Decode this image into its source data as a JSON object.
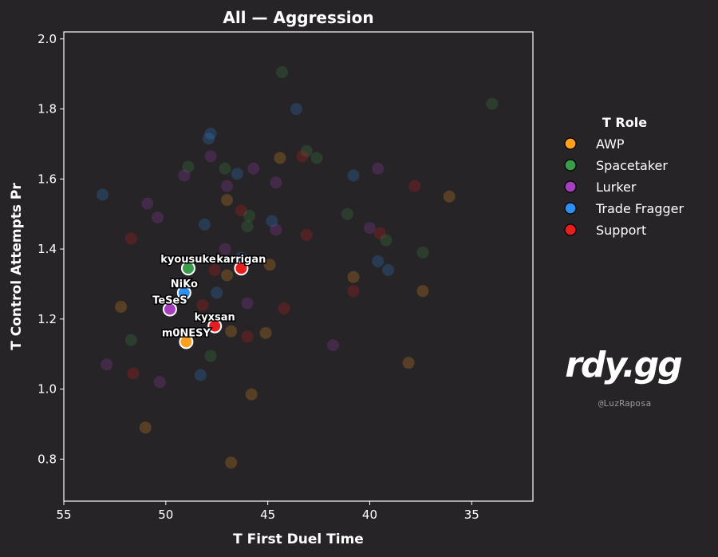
{
  "chart_data": {
    "type": "scatter",
    "title": "All — Aggression",
    "xlabel": "T First Duel Time",
    "ylabel": "T Control Attempts Pr",
    "xlim": [
      55,
      32
    ],
    "ylim": [
      0.68,
      2.02
    ],
    "x_reversed": true,
    "xticks": [
      55,
      50,
      45,
      40,
      35
    ],
    "yticks": [
      0.8,
      1.0,
      1.2,
      1.4,
      1.6,
      1.8,
      2.0
    ],
    "xtick_labels": [
      "55",
      "50",
      "45",
      "40",
      "35"
    ],
    "ytick_labels": [
      "0.8",
      "1.0",
      "1.2",
      "1.4",
      "1.6",
      "1.8",
      "2.0"
    ],
    "grid": false,
    "legend": {
      "title": "T Role",
      "placement": "right",
      "entries": [
        {
          "label": "AWP",
          "color": "#ff9f1c"
        },
        {
          "label": "Spacetaker",
          "color": "#3a9d4a"
        },
        {
          "label": "Lurker",
          "color": "#a63fbf"
        },
        {
          "label": "Trade Fragger",
          "color": "#2d8ff0"
        },
        {
          "label": "Support",
          "color": "#e81d1d"
        }
      ]
    },
    "highlighted": [
      {
        "name": "kyousuke",
        "x": 48.9,
        "y": 1.345,
        "role": "Spacetaker"
      },
      {
        "name": "karrigan",
        "x": 46.3,
        "y": 1.345,
        "role": "Support"
      },
      {
        "name": "NiKo",
        "x": 49.1,
        "y": 1.275,
        "role": "Trade Fragger"
      },
      {
        "name": "TeSeS",
        "x": 49.8,
        "y": 1.228,
        "role": "Lurker"
      },
      {
        "name": "kyxsan",
        "x": 47.6,
        "y": 1.18,
        "role": "Support"
      },
      {
        "name": "m0NESY",
        "x": 49.0,
        "y": 1.135,
        "role": "AWP"
      }
    ],
    "background_points": [
      {
        "x": 44.3,
        "y": 1.905,
        "role": "Spacetaker"
      },
      {
        "x": 34.0,
        "y": 1.815,
        "role": "Spacetaker"
      },
      {
        "x": 43.6,
        "y": 1.8,
        "role": "Trade Fragger"
      },
      {
        "x": 47.8,
        "y": 1.73,
        "role": "Trade Fragger"
      },
      {
        "x": 47.9,
        "y": 1.715,
        "role": "Trade Fragger"
      },
      {
        "x": 47.8,
        "y": 1.665,
        "role": "Lurker"
      },
      {
        "x": 44.4,
        "y": 1.66,
        "role": "AWP"
      },
      {
        "x": 43.1,
        "y": 1.68,
        "role": "Spacetaker"
      },
      {
        "x": 43.3,
        "y": 1.665,
        "role": "Support"
      },
      {
        "x": 42.6,
        "y": 1.66,
        "role": "Spacetaker"
      },
      {
        "x": 48.9,
        "y": 1.635,
        "role": "Spacetaker"
      },
      {
        "x": 49.1,
        "y": 1.61,
        "role": "Lurker"
      },
      {
        "x": 47.1,
        "y": 1.63,
        "role": "Spacetaker"
      },
      {
        "x": 46.5,
        "y": 1.615,
        "role": "Trade Fragger"
      },
      {
        "x": 45.7,
        "y": 1.63,
        "role": "Lurker"
      },
      {
        "x": 40.8,
        "y": 1.61,
        "role": "Trade Fragger"
      },
      {
        "x": 39.6,
        "y": 1.63,
        "role": "Lurker"
      },
      {
        "x": 47.0,
        "y": 1.58,
        "role": "Lurker"
      },
      {
        "x": 44.6,
        "y": 1.59,
        "role": "Lurker"
      },
      {
        "x": 37.8,
        "y": 1.58,
        "role": "Support"
      },
      {
        "x": 36.1,
        "y": 1.55,
        "role": "AWP"
      },
      {
        "x": 53.1,
        "y": 1.555,
        "role": "Trade Fragger"
      },
      {
        "x": 50.9,
        "y": 1.53,
        "role": "Lurker"
      },
      {
        "x": 47.0,
        "y": 1.54,
        "role": "AWP"
      },
      {
        "x": 46.3,
        "y": 1.51,
        "role": "Support"
      },
      {
        "x": 45.9,
        "y": 1.495,
        "role": "Spacetaker"
      },
      {
        "x": 50.4,
        "y": 1.49,
        "role": "Lurker"
      },
      {
        "x": 41.1,
        "y": 1.5,
        "role": "Spacetaker"
      },
      {
        "x": 48.1,
        "y": 1.47,
        "role": "Trade Fragger"
      },
      {
        "x": 46.0,
        "y": 1.465,
        "role": "Spacetaker"
      },
      {
        "x": 44.8,
        "y": 1.48,
        "role": "Trade Fragger"
      },
      {
        "x": 44.6,
        "y": 1.455,
        "role": "Lurker"
      },
      {
        "x": 40.0,
        "y": 1.46,
        "role": "Lurker"
      },
      {
        "x": 39.5,
        "y": 1.445,
        "role": "Support"
      },
      {
        "x": 51.7,
        "y": 1.43,
        "role": "Support"
      },
      {
        "x": 43.1,
        "y": 1.44,
        "role": "Support"
      },
      {
        "x": 39.2,
        "y": 1.425,
        "role": "Spacetaker"
      },
      {
        "x": 47.1,
        "y": 1.4,
        "role": "Lurker"
      },
      {
        "x": 37.4,
        "y": 1.39,
        "role": "Spacetaker"
      },
      {
        "x": 46.3,
        "y": 1.375,
        "role": "Trade Fragger"
      },
      {
        "x": 39.6,
        "y": 1.365,
        "role": "Trade Fragger"
      },
      {
        "x": 44.9,
        "y": 1.355,
        "role": "AWP"
      },
      {
        "x": 47.6,
        "y": 1.34,
        "role": "Support"
      },
      {
        "x": 39.1,
        "y": 1.34,
        "role": "Trade Fragger"
      },
      {
        "x": 47.0,
        "y": 1.325,
        "role": "AWP"
      },
      {
        "x": 40.8,
        "y": 1.32,
        "role": "AWP"
      },
      {
        "x": 47.5,
        "y": 1.275,
        "role": "Trade Fragger"
      },
      {
        "x": 40.8,
        "y": 1.28,
        "role": "Support"
      },
      {
        "x": 37.4,
        "y": 1.28,
        "role": "AWP"
      },
      {
        "x": 52.2,
        "y": 1.235,
        "role": "AWP"
      },
      {
        "x": 48.2,
        "y": 1.24,
        "role": "Support"
      },
      {
        "x": 46.0,
        "y": 1.245,
        "role": "Lurker"
      },
      {
        "x": 44.2,
        "y": 1.23,
        "role": "Support"
      },
      {
        "x": 45.1,
        "y": 1.16,
        "role": "AWP"
      },
      {
        "x": 46.8,
        "y": 1.165,
        "role": "AWP"
      },
      {
        "x": 46.0,
        "y": 1.15,
        "role": "Support"
      },
      {
        "x": 51.7,
        "y": 1.14,
        "role": "Spacetaker"
      },
      {
        "x": 41.8,
        "y": 1.125,
        "role": "Lurker"
      },
      {
        "x": 47.8,
        "y": 1.095,
        "role": "Spacetaker"
      },
      {
        "x": 52.9,
        "y": 1.07,
        "role": "Lurker"
      },
      {
        "x": 38.1,
        "y": 1.075,
        "role": "AWP"
      },
      {
        "x": 51.6,
        "y": 1.045,
        "role": "Support"
      },
      {
        "x": 48.3,
        "y": 1.04,
        "role": "Trade Fragger"
      },
      {
        "x": 50.3,
        "y": 1.02,
        "role": "Lurker"
      },
      {
        "x": 45.8,
        "y": 0.985,
        "role": "AWP"
      },
      {
        "x": 51.0,
        "y": 0.89,
        "role": "AWP"
      },
      {
        "x": 46.8,
        "y": 0.79,
        "role": "AWP"
      }
    ]
  },
  "branding": {
    "logo": "rdy.gg",
    "handle": "@LuzRaposa"
  }
}
